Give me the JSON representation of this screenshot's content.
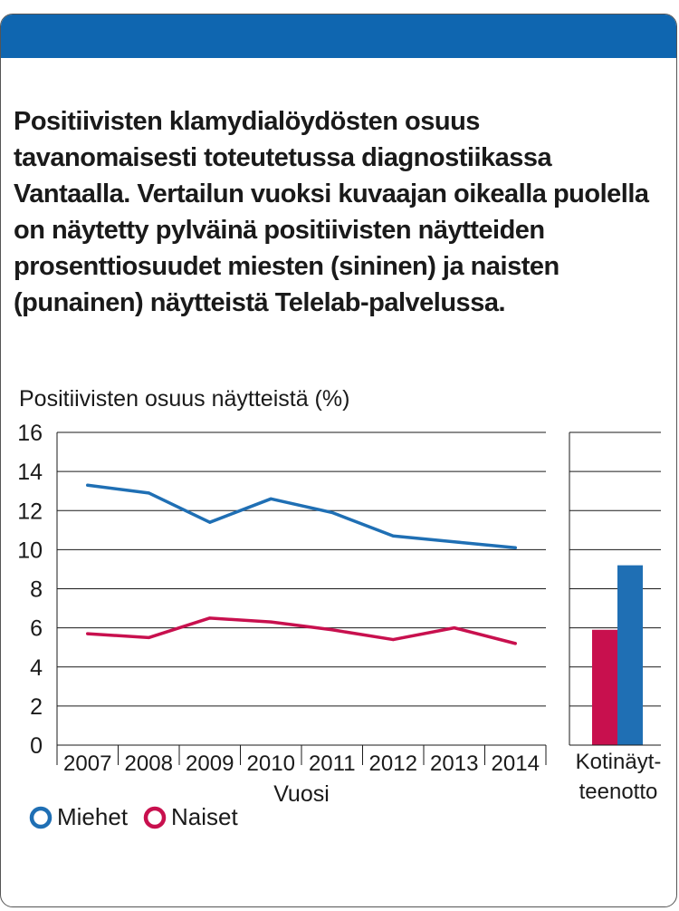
{
  "header": {
    "color": "#0f66b0"
  },
  "title": "Positiivisten klamydialöydösten osuus tavanomaisesti toteutetussa diagnostiikassa Vantaalla. Vertailun vuoksi kuvaajan oikealla puolella on näytetty pylväinä positiivisten näytteiden prosenttiosuudet miesten (sininen) ja naisten (punainen) näytteistä Telelab-palvelussa.",
  "chart_data": [
    {
      "type": "line",
      "ylabel": "Positiivisten osuus näytteistä (%)",
      "xlabel": "Vuosi",
      "categories": [
        "2007",
        "2008",
        "2009",
        "2010",
        "2011",
        "2012",
        "2013",
        "2014"
      ],
      "ylim": [
        0,
        16
      ],
      "yticks": [
        "0",
        "2",
        "4",
        "6",
        "8",
        "10",
        "12",
        "14",
        "16"
      ],
      "grid": true,
      "legend_position": "bottom-left",
      "series": [
        {
          "name": "Miehet",
          "color": "#1f6fb4",
          "values": [
            13.3,
            12.9,
            11.4,
            12.6,
            11.9,
            10.7,
            10.4,
            10.1
          ]
        },
        {
          "name": "Naiset",
          "color": "#c8104e",
          "values": [
            5.7,
            5.5,
            6.5,
            6.3,
            5.9,
            5.4,
            6.0,
            5.2
          ]
        }
      ]
    },
    {
      "type": "bar",
      "categories": [
        "Kotinäyt-teenotto"
      ],
      "category_lines": [
        "Kotinäyt-",
        "teenotto"
      ],
      "ylim": [
        0,
        16
      ],
      "grid": true,
      "series": [
        {
          "name": "Naiset",
          "color": "#c8104e",
          "values": [
            5.9
          ]
        },
        {
          "name": "Miehet",
          "color": "#1f6fb4",
          "values": [
            9.2
          ]
        }
      ]
    }
  ]
}
